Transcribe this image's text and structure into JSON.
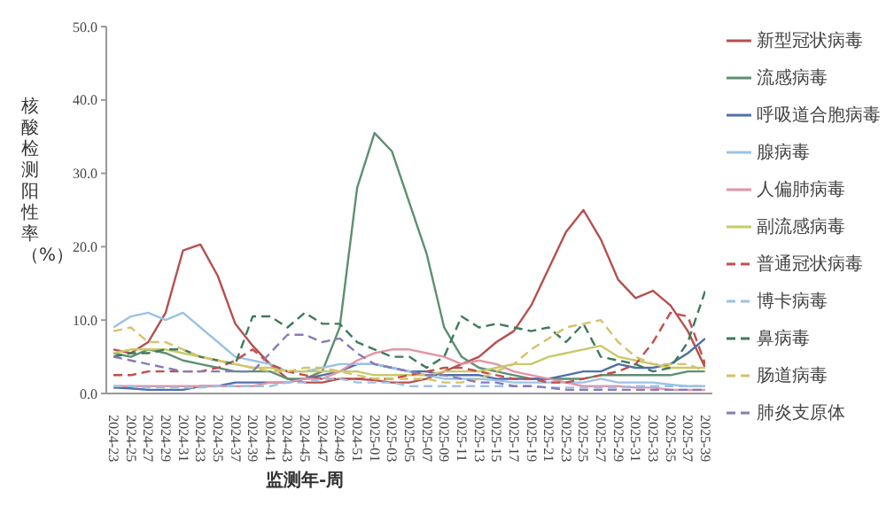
{
  "chart_data": {
    "type": "line",
    "xlabel": "监测年-周",
    "ylabel": "核酸检测阳性率（%）",
    "categories": [
      "2024-23",
      "2024-25",
      "2024-27",
      "2024-29",
      "2024-31",
      "2024-33",
      "2024-35",
      "2024-37",
      "2024-39",
      "2024-41",
      "2024-43",
      "2024-45",
      "2024-47",
      "2024-49",
      "2024-51",
      "2025-01",
      "2025-03",
      "2025-05",
      "2025-07",
      "2025-09",
      "2025-11",
      "2025-13",
      "2025-15",
      "2025-17",
      "2025-19",
      "2025-21",
      "2025-23",
      "2025-25",
      "2025-27",
      "2025-29",
      "2025-31",
      "2025-33",
      "2025-35",
      "2025-37",
      "2025-39"
    ],
    "ylim": [
      0,
      50
    ],
    "yticks": [
      {
        "value": 0,
        "label": "0.0"
      },
      {
        "value": 10,
        "label": "10.0"
      },
      {
        "value": 20,
        "label": "20.0"
      },
      {
        "value": 30,
        "label": "30.0"
      },
      {
        "value": 40,
        "label": "40.0"
      },
      {
        "value": 50,
        "label": "50.0"
      }
    ],
    "legend": "right",
    "marker": "none",
    "series": [
      {
        "name": "新型冠状病毒",
        "color": "#b5504f",
        "line_style": "solid",
        "values": [
          6,
          5.5,
          7,
          11,
          19.5,
          20.3,
          16,
          9.5,
          6.5,
          4,
          2,
          1.5,
          1.5,
          2,
          2,
          1.8,
          1.5,
          1.5,
          2,
          3,
          4,
          5,
          7,
          8.5,
          12,
          17,
          22,
          25,
          21,
          15.5,
          13,
          14,
          12,
          8.5,
          3.5
        ]
      },
      {
        "name": "流感病毒",
        "color": "#5e8f72",
        "line_style": "solid",
        "values": [
          5.5,
          5,
          6,
          5.5,
          4.5,
          4,
          3.5,
          3,
          3,
          3,
          2,
          2,
          3,
          9,
          28,
          35.5,
          33,
          26,
          19,
          9,
          5,
          3.5,
          3,
          2.5,
          2,
          2,
          2,
          2,
          2.5,
          2.5,
          2.5,
          2.5,
          2.5,
          3,
          3
        ]
      },
      {
        "name": "呼吸道合胞病毒",
        "color": "#4f6fa8",
        "line_style": "solid",
        "values": [
          0.8,
          0.7,
          0.5,
          0.5,
          0.5,
          1,
          1,
          1.5,
          1.5,
          1.5,
          1.5,
          2,
          2.5,
          3,
          4,
          4,
          3.5,
          3,
          3,
          2.5,
          2.5,
          2.5,
          2,
          2,
          2,
          2,
          2.5,
          3,
          3,
          4,
          3.5,
          3.5,
          4,
          5.5,
          7.5
        ]
      },
      {
        "name": "腺病毒",
        "color": "#9cc2e5",
        "line_style": "solid",
        "values": [
          9,
          10.5,
          11,
          10,
          11,
          9,
          7,
          5,
          4.5,
          4,
          3,
          3,
          3.5,
          4,
          4,
          4,
          3.5,
          3,
          2.5,
          2,
          2,
          2,
          1.8,
          1.5,
          1.5,
          1.5,
          1.5,
          1.5,
          2,
          1.5,
          1.5,
          1.5,
          1.2,
          1,
          1
        ]
      },
      {
        "name": "人偏肺病毒",
        "color": "#e394a8",
        "line_style": "solid",
        "values": [
          1,
          1,
          1,
          1,
          1,
          1,
          1,
          1,
          1,
          1.5,
          1.5,
          2,
          2,
          3,
          4.5,
          5.5,
          6,
          6,
          5.5,
          5,
          4,
          4.5,
          4,
          3,
          2.5,
          2,
          1.5,
          1,
          1,
          1,
          0.8,
          0.8,
          0.5,
          0.5,
          0.5
        ]
      },
      {
        "name": "副流感病毒",
        "color": "#c9c96a",
        "line_style": "solid",
        "values": [
          5.5,
          6,
          6,
          6,
          5.5,
          5,
          4.5,
          4,
          3.5,
          3.5,
          3,
          3,
          3,
          3,
          3,
          2.5,
          2.5,
          2.5,
          2.5,
          3,
          3,
          3,
          3.5,
          4,
          4,
          5,
          5.5,
          6,
          6.5,
          5,
          4.5,
          4,
          3.5,
          3.5,
          3.5
        ]
      },
      {
        "name": "普通冠状病毒",
        "color": "#c0504d",
        "line_style": "dashed",
        "values": [
          2.5,
          2.5,
          3,
          3,
          3,
          3,
          3.5,
          4.5,
          6,
          4,
          3,
          2.5,
          2,
          2,
          2,
          2,
          2,
          2.5,
          3,
          3.5,
          3.5,
          3,
          2.5,
          2,
          2,
          1.5,
          1.5,
          2,
          2.5,
          3,
          4,
          7,
          11,
          10.5,
          4
        ]
      },
      {
        "name": "博卡病毒",
        "color": "#9cc2e5",
        "line_style": "dashed",
        "values": [
          1,
          1,
          0.8,
          0.8,
          0.8,
          0.8,
          1,
          1,
          1,
          1,
          1.5,
          1.5,
          2,
          2,
          1.5,
          1.5,
          1.5,
          1,
          1,
          1,
          1,
          1,
          1,
          1,
          1,
          0.8,
          0.8,
          0.8,
          0.8,
          0.8,
          1,
          1,
          1,
          1,
          1
        ]
      },
      {
        "name": "鼻病毒",
        "color": "#3f7a5a",
        "line_style": "dashed",
        "values": [
          5,
          5.5,
          5.5,
          6,
          6,
          5,
          4.5,
          4,
          10.5,
          10.5,
          9,
          11,
          9.5,
          9.5,
          7,
          6,
          5,
          5,
          3.5,
          5,
          10.5,
          9,
          9.5,
          9,
          8.5,
          9,
          7,
          9.5,
          5,
          4.5,
          4,
          3,
          3.5,
          7,
          14
        ]
      },
      {
        "name": "肠道病毒",
        "color": "#d4c26a",
        "line_style": "dashed",
        "values": [
          8.5,
          9,
          7,
          7,
          6,
          5,
          4.5,
          4,
          3.5,
          3,
          3,
          3.5,
          3.5,
          3,
          2.5,
          2,
          2,
          2,
          2,
          1.5,
          1.5,
          2,
          3,
          4,
          6,
          7.5,
          9,
          9.5,
          10,
          7,
          5,
          4,
          4,
          4,
          3
        ]
      },
      {
        "name": "肺炎支原体",
        "color": "#8a7ab8",
        "line_style": "dashed",
        "values": [
          5,
          4.5,
          4,
          3.5,
          3,
          3,
          3,
          3,
          3,
          5.5,
          8,
          8,
          7,
          7.5,
          5.5,
          4,
          3.5,
          3,
          2.5,
          2.5,
          2,
          1.5,
          1.5,
          1,
          1,
          0.8,
          0.5,
          0.5,
          0.5,
          0.5,
          0.5,
          0.5,
          0.5,
          0.5,
          0.5
        ]
      }
    ]
  }
}
